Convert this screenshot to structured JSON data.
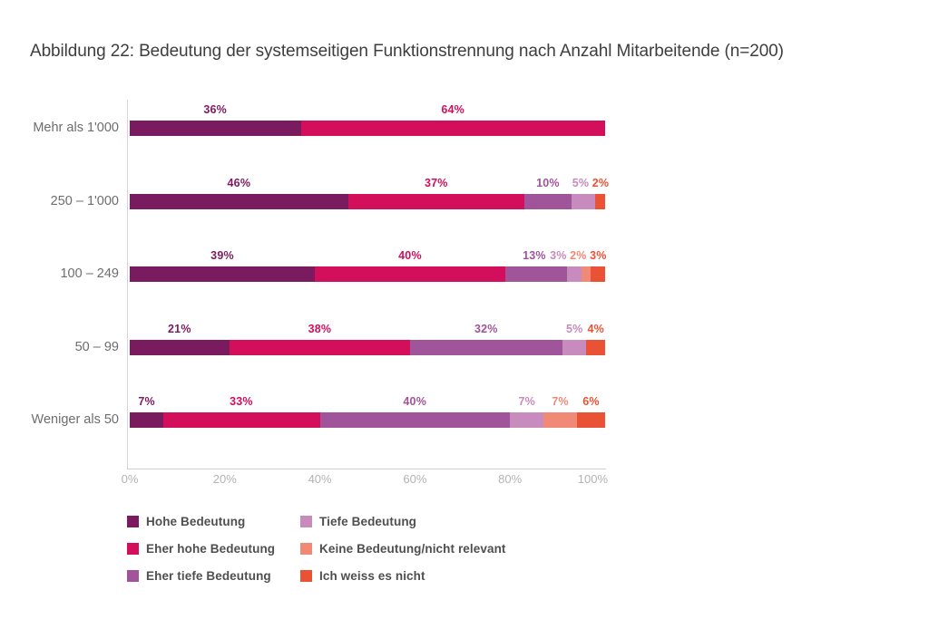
{
  "title": "Abbildung 22: Bedeutung der systemseitigen Funktionstrennung nach Anzahl Mitarbeitende (n=200)",
  "chart_data": {
    "type": "bar",
    "orientation": "horizontal",
    "stacked": true,
    "unit": "%",
    "title": "Abbildung 22: Bedeutung der systemseitigen Funktionstrennung nach Anzahl Mitarbeitende (n=200)",
    "categories": [
      "Mehr als 1'000",
      "250 – 1'000",
      "100 – 249",
      "50 – 99",
      "Weniger als 50"
    ],
    "series": [
      {
        "name": "Hohe Bedeutung",
        "color": "#7a1b5f",
        "values": [
          36,
          46,
          39,
          21,
          7
        ]
      },
      {
        "name": "Eher hohe Bedeutung",
        "color": "#d30f5c",
        "values": [
          64,
          37,
          40,
          38,
          33
        ]
      },
      {
        "name": "Eher tiefe Bedeutung",
        "color": "#a0549a",
        "values": [
          0,
          10,
          13,
          32,
          40
        ]
      },
      {
        "name": "Tiefe Bedeutung",
        "color": "#c88bbd",
        "values": [
          0,
          5,
          3,
          5,
          7
        ]
      },
      {
        "name": "Keine Bedeutung/nicht relevant",
        "color": "#f18977",
        "values": [
          0,
          0,
          2,
          0,
          7
        ]
      },
      {
        "name": "Ich weiss es nicht",
        "color": "#e95234",
        "values": [
          0,
          2,
          3,
          4,
          6
        ]
      }
    ],
    "x_ticks": [
      "0%",
      "20%",
      "40%",
      "60%",
      "80%",
      "100%"
    ],
    "xlim": [
      0,
      100
    ],
    "grid": false,
    "legend_position": "bottom-left",
    "legend_columns": 2
  }
}
